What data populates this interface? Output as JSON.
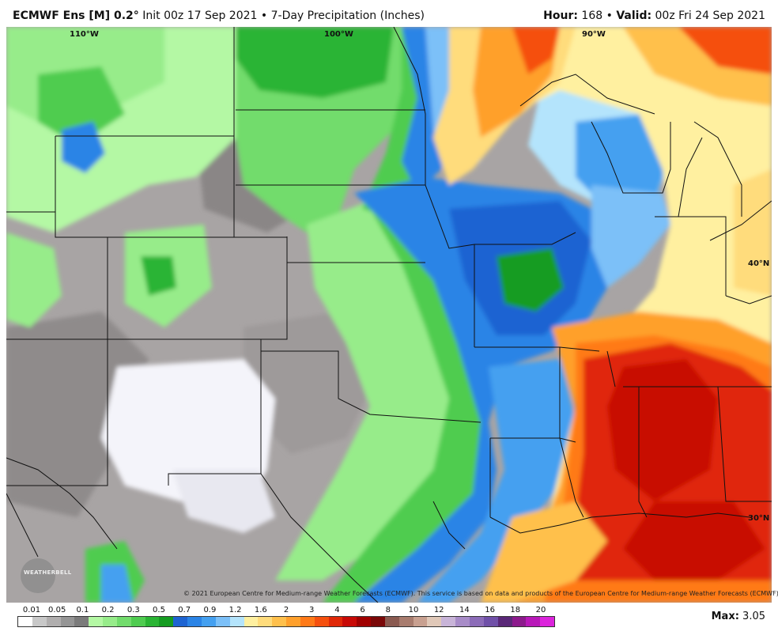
{
  "header": {
    "product": "ECMWF Ens [M] 0.2°",
    "init": "Init 00z 17 Sep 2021",
    "separator": "•",
    "field": "7-Day Precipitation (Inches)",
    "hour_label": "Hour:",
    "hour_value": "168",
    "valid_label": "Valid:",
    "valid_value": "00z Fri 24 Sep 2021"
  },
  "map": {
    "lon_labels": [
      "110°W",
      "100°W",
      "90°W"
    ],
    "lat_labels": [
      "40°N",
      "30°N"
    ],
    "copyright": "© 2021 European Centre for Medium-range Weather Forecasts (ECMWF). This service is based on data and products of the European Centre for Medium-range Weather Forecasts (ECMWF).",
    "logo_text": "WEATHERBELL"
  },
  "legend": {
    "labels": [
      "0.01",
      "0.05",
      "0.1",
      "0.2",
      "0.3",
      "0.5",
      "0.7",
      "0.9",
      "1.2",
      "1.6",
      "2",
      "3",
      "4",
      "6",
      "8",
      "10",
      "12",
      "14",
      "16",
      "18",
      "20"
    ],
    "colors": [
      "#ffffff",
      "#c8c8c8",
      "#b0aeae",
      "#959595",
      "#7b7b7b",
      "#b4f8a4",
      "#97ec8a",
      "#72dc6c",
      "#4fcc50",
      "#2ab434",
      "#159c21",
      "#1e64d2",
      "#2b84e6",
      "#44a0f0",
      "#7cc0f8",
      "#b4e4fc",
      "#fff0a0",
      "#ffdc7c",
      "#ffc04c",
      "#ffa02c",
      "#ff7a18",
      "#f5500e",
      "#e02808",
      "#c80a06",
      "#a00000",
      "#7a0808",
      "#8a5a50",
      "#a87c6e",
      "#c8a090",
      "#e0c8b8",
      "#c8b4d8",
      "#a88cc8",
      "#8c6cb8",
      "#7050a8",
      "#5a2878",
      "#8c1a8c",
      "#b818b8",
      "#dc24dc"
    ]
  },
  "max": {
    "label": "Max:",
    "value": "3.05"
  }
}
